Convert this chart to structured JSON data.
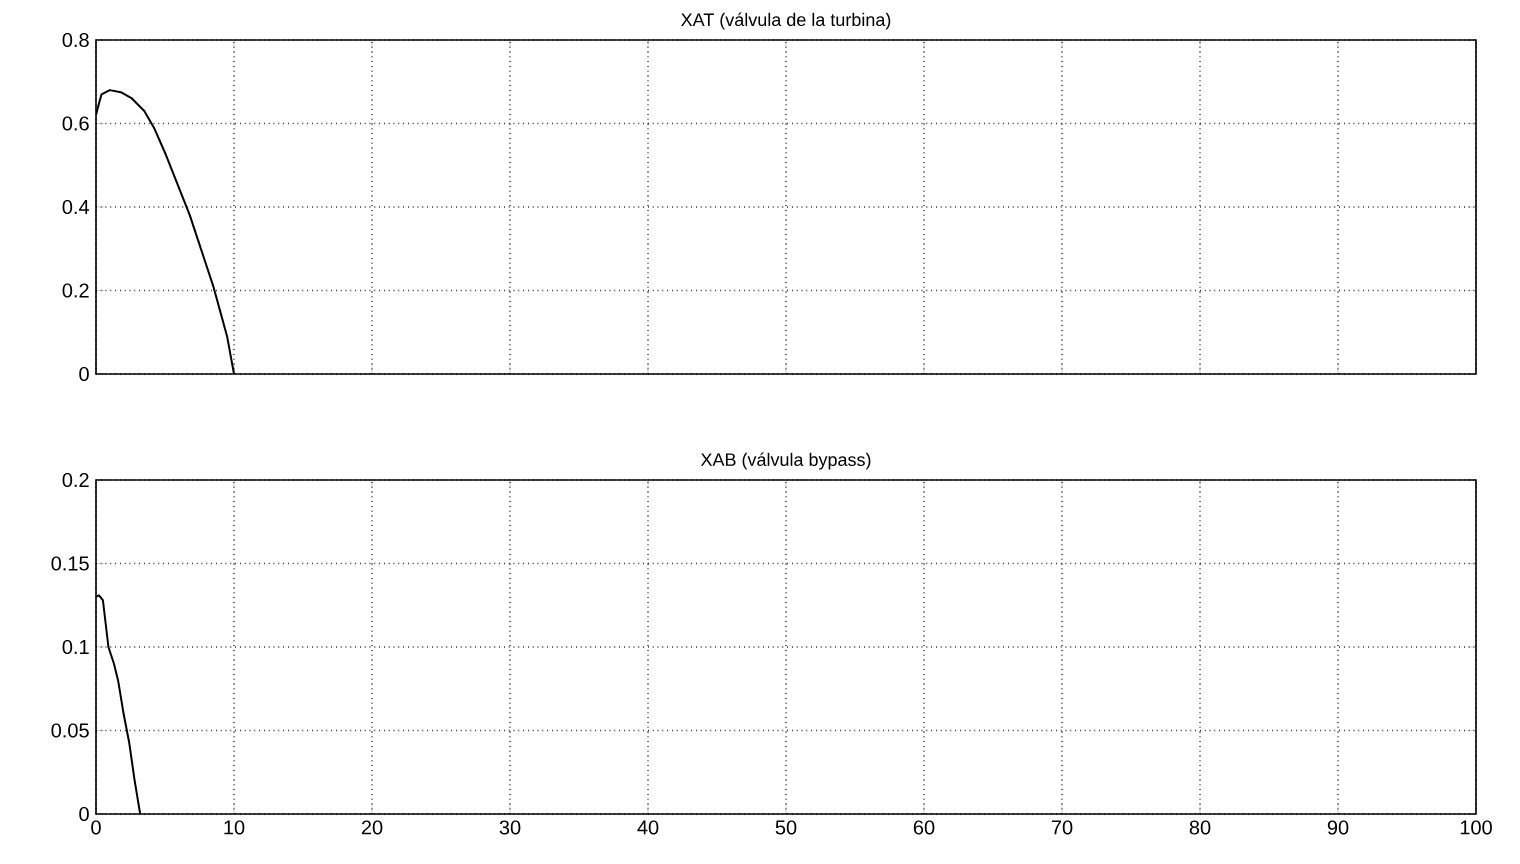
{
  "chart_data": [
    {
      "type": "line",
      "title": "XAT (válvula de la turbina)",
      "x": [
        0,
        0.15,
        0.4,
        1,
        1.8,
        2.6,
        3.5,
        4.2,
        5.0,
        5.6,
        6.2,
        6.8,
        7.4,
        7.9,
        8.5,
        9.0,
        9.5,
        10
      ],
      "values": [
        0.62,
        0.64,
        0.67,
        0.68,
        0.675,
        0.66,
        0.63,
        0.59,
        0.53,
        0.48,
        0.43,
        0.38,
        0.32,
        0.27,
        0.21,
        0.15,
        0.09,
        0
      ],
      "color": "#000000",
      "xlim": [
        0,
        100
      ],
      "xticks": [
        0,
        10,
        20,
        30,
        40,
        50,
        60,
        70,
        80,
        90,
        100
      ],
      "ylim": [
        0,
        0.8
      ],
      "yticks": [
        0,
        0.2,
        0.4,
        0.6,
        0.8
      ],
      "grid": true,
      "tick_labels": "y"
    },
    {
      "type": "line",
      "title": "XAB (válvula bypass)",
      "x": [
        0,
        0.2,
        0.5,
        0.9,
        1.3,
        1.6,
        2.0,
        2.4,
        2.8,
        3.2
      ],
      "values": [
        0.13,
        0.131,
        0.128,
        0.1,
        0.09,
        0.08,
        0.06,
        0.043,
        0.02,
        0
      ],
      "color": "#000000",
      "xlim": [
        0,
        100
      ],
      "xticks": [
        0,
        10,
        20,
        30,
        40,
        50,
        60,
        70,
        80,
        90,
        100
      ],
      "ylim": [
        0,
        0.2
      ],
      "yticks": [
        0,
        0.05,
        0.1,
        0.15,
        0.2
      ],
      "grid": true
    }
  ]
}
